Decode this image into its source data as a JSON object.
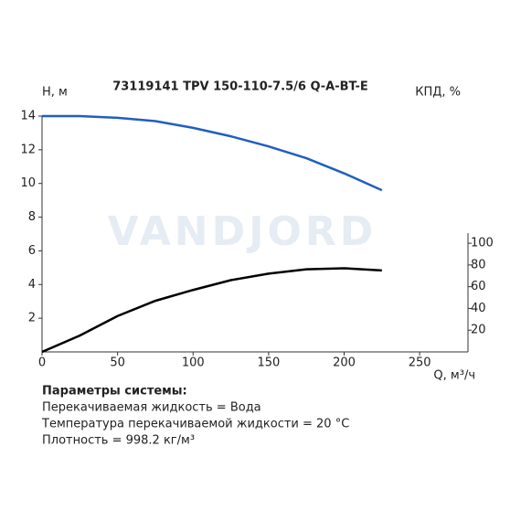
{
  "chart_data": {
    "type": "line",
    "title": "73119141 TPV 150-110-7.5/6 Q-A-BT-E",
    "y_label": "H, м",
    "y2_label": "КПД, %",
    "x_label": "Q, м³/ч",
    "watermark": "VANDJORD",
    "x": [
      0,
      25,
      50,
      75,
      100,
      125,
      150,
      175,
      200,
      225
    ],
    "series": [
      {
        "name": "H",
        "color": "#1f5fbf",
        "values": [
          14.0,
          14.0,
          13.9,
          13.7,
          13.3,
          12.8,
          12.2,
          11.5,
          10.6,
          9.6
        ]
      },
      {
        "name": "КПД",
        "color": "#000000",
        "axis": "y2",
        "values": [
          0,
          15,
          33,
          47,
          57,
          66,
          72,
          76,
          77,
          75
        ]
      }
    ],
    "xlim": [
      0,
      282
    ],
    "xticks": [
      0,
      50,
      100,
      150,
      200,
      250
    ],
    "ylim": [
      0,
      14
    ],
    "yticks": [
      2,
      4,
      6,
      8,
      10,
      12,
      14
    ],
    "y2lim": [
      0,
      217
    ],
    "y2ticks": [
      20,
      40,
      60,
      80,
      100
    ]
  },
  "notes": {
    "heading": "Параметры системы:",
    "lines": [
      "Перекачиваемая жидкость = Вода",
      "Температура перекачиваемой жидкости = 20 °C",
      "Плотность = 998.2 кг/м³"
    ]
  }
}
